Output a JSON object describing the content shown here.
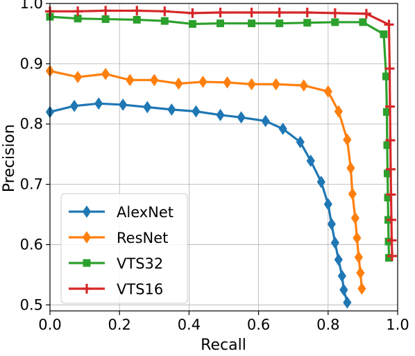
{
  "chart_data": {
    "type": "line",
    "title": "",
    "xlabel": "Recall",
    "ylabel": "Precision",
    "xlim": [
      0.0,
      1.0
    ],
    "ylim": [
      0.49,
      1.0
    ],
    "xticks": [
      "0.0",
      "0.2",
      "0.4",
      "0.6",
      "0.8",
      "1.0"
    ],
    "yticks": [
      "0.5",
      "0.6",
      "0.7",
      "0.8",
      "0.9",
      "1.0"
    ],
    "grid": true,
    "legend_position": "lower-left",
    "series": [
      {
        "name": "AlexNet",
        "color": "#1f77b4",
        "marker": "diamond",
        "x": [
          0.0,
          0.07,
          0.14,
          0.21,
          0.28,
          0.35,
          0.42,
          0.49,
          0.55,
          0.62,
          0.67,
          0.72,
          0.75,
          0.78,
          0.8,
          0.81,
          0.82,
          0.83,
          0.84,
          0.845,
          0.855
        ],
        "y": [
          0.82,
          0.83,
          0.834,
          0.832,
          0.828,
          0.824,
          0.821,
          0.815,
          0.811,
          0.805,
          0.792,
          0.77,
          0.739,
          0.704,
          0.667,
          0.634,
          0.603,
          0.575,
          0.548,
          0.525,
          0.504
        ]
      },
      {
        "name": "ResNet",
        "color": "#ff7f0e",
        "marker": "diamond",
        "x": [
          0.0,
          0.08,
          0.16,
          0.23,
          0.3,
          0.37,
          0.44,
          0.51,
          0.58,
          0.65,
          0.73,
          0.8,
          0.83,
          0.855,
          0.865,
          0.87,
          0.878,
          0.883,
          0.888,
          0.893,
          0.897
        ],
        "y": [
          0.888,
          0.878,
          0.883,
          0.873,
          0.873,
          0.867,
          0.87,
          0.869,
          0.866,
          0.866,
          0.864,
          0.854,
          0.821,
          0.774,
          0.727,
          0.684,
          0.644,
          0.611,
          0.579,
          0.553,
          0.527
        ]
      },
      {
        "name": "VTS32",
        "color": "#2ca02c",
        "marker": "square",
        "x": [
          0.0,
          0.08,
          0.16,
          0.25,
          0.33,
          0.41,
          0.49,
          0.58,
          0.66,
          0.74,
          0.82,
          0.9,
          0.96,
          0.967,
          0.969,
          0.97,
          0.971,
          0.972,
          0.973,
          0.974,
          0.975
        ],
        "y": [
          0.978,
          0.975,
          0.974,
          0.973,
          0.971,
          0.966,
          0.967,
          0.967,
          0.967,
          0.968,
          0.969,
          0.969,
          0.949,
          0.879,
          0.82,
          0.765,
          0.718,
          0.678,
          0.641,
          0.605,
          0.578
        ]
      },
      {
        "name": "VTS16",
        "color": "#d62728",
        "marker": "plus",
        "x": [
          0.0,
          0.08,
          0.16,
          0.25,
          0.33,
          0.41,
          0.49,
          0.58,
          0.66,
          0.74,
          0.82,
          0.91,
          0.975,
          0.977,
          0.978,
          0.979,
          0.98,
          0.981,
          0.982,
          0.983,
          0.984
        ],
        "y": [
          0.987,
          0.987,
          0.988,
          0.988,
          0.987,
          0.984,
          0.985,
          0.985,
          0.985,
          0.985,
          0.984,
          0.983,
          0.965,
          0.892,
          0.829,
          0.773,
          0.725,
          0.683,
          0.641,
          0.607,
          0.581
        ]
      }
    ]
  }
}
